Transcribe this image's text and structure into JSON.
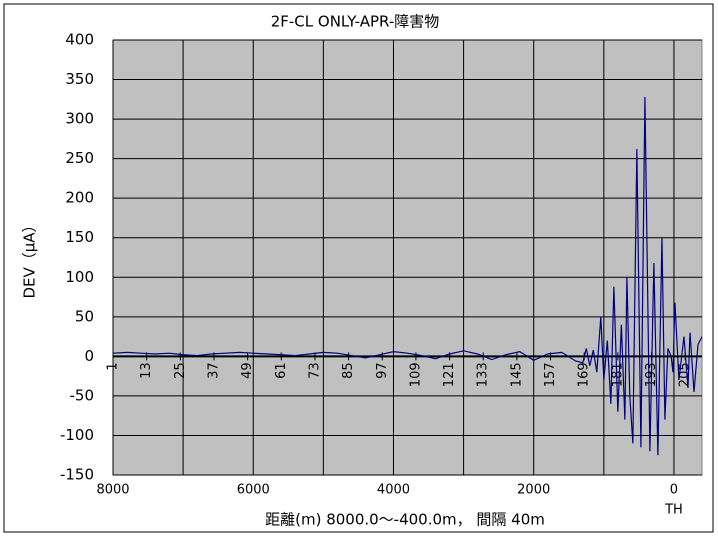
{
  "chart_data": {
    "type": "line",
    "title": "2F-CL ONLY-APR-障害物",
    "y_label": "DEV（μA）",
    "x_label": "距離(m)  8000.0～-400.0m，  間隔 40m",
    "xlim": [
      8000,
      -400
    ],
    "ylim": [
      -150,
      400
    ],
    "xticks": [
      8000,
      6000,
      4000,
      2000,
      0
    ],
    "x_minor_grid": [
      7000,
      5000,
      3000,
      1000
    ],
    "yticks": [
      -150,
      -100,
      -50,
      0,
      50,
      100,
      150,
      200,
      250,
      300,
      350,
      400
    ],
    "index_ticks": [
      {
        "value": 8000,
        "label": "1"
      },
      {
        "value": 7520,
        "label": "13"
      },
      {
        "value": 7040,
        "label": "25"
      },
      {
        "value": 6560,
        "label": "37"
      },
      {
        "value": 6080,
        "label": "49"
      },
      {
        "value": 5600,
        "label": "61"
      },
      {
        "value": 5120,
        "label": "73"
      },
      {
        "value": 4640,
        "label": "85"
      },
      {
        "value": 4160,
        "label": "97"
      },
      {
        "value": 3680,
        "label": "109"
      },
      {
        "value": 3200,
        "label": "121"
      },
      {
        "value": 2720,
        "label": "133"
      },
      {
        "value": 2240,
        "label": "145"
      },
      {
        "value": 1760,
        "label": "157"
      },
      {
        "value": 1280,
        "label": "169"
      },
      {
        "value": 800,
        "label": "181"
      },
      {
        "value": 320,
        "label": "193"
      },
      {
        "value": -160,
        "label": "205"
      }
    ],
    "x_markers": [
      {
        "value": 0,
        "label": "TH"
      }
    ],
    "grid": true,
    "series": [
      {
        "name": "DEV",
        "color": "#000080",
        "x": [
          8000,
          7800,
          7600,
          7400,
          7200,
          7000,
          6800,
          6600,
          6400,
          6200,
          6000,
          5800,
          5600,
          5400,
          5200,
          5000,
          4800,
          4600,
          4400,
          4200,
          4000,
          3800,
          3600,
          3400,
          3200,
          3000,
          2800,
          2600,
          2400,
          2200,
          2000,
          1800,
          1600,
          1400,
          1300,
          1250,
          1200,
          1150,
          1100,
          1043,
          1000,
          950,
          900,
          857,
          800,
          750,
          700,
          671,
          630,
          586,
          529,
          471,
          414,
          343,
          286,
          229,
          171,
          129,
          86,
          40,
          14,
          -14,
          -71,
          -143,
          -200,
          -229,
          -286,
          -343,
          -400
        ],
        "values": [
          4,
          5,
          4,
          3,
          4,
          2,
          1,
          3,
          4,
          5,
          4,
          3,
          2,
          1,
          3,
          5,
          4,
          1,
          -2,
          2,
          6,
          4,
          1,
          -3,
          3,
          7,
          3,
          -4,
          2,
          6,
          -5,
          3,
          5,
          -6,
          -8,
          10,
          -12,
          8,
          -20,
          50,
          -30,
          20,
          -60,
          88,
          -70,
          40,
          -80,
          100,
          -50,
          -110,
          262,
          -115,
          328,
          -120,
          118,
          -125,
          150,
          -80,
          10,
          0,
          -20,
          68,
          -30,
          25,
          -40,
          30,
          -45,
          15,
          25
        ]
      }
    ]
  }
}
